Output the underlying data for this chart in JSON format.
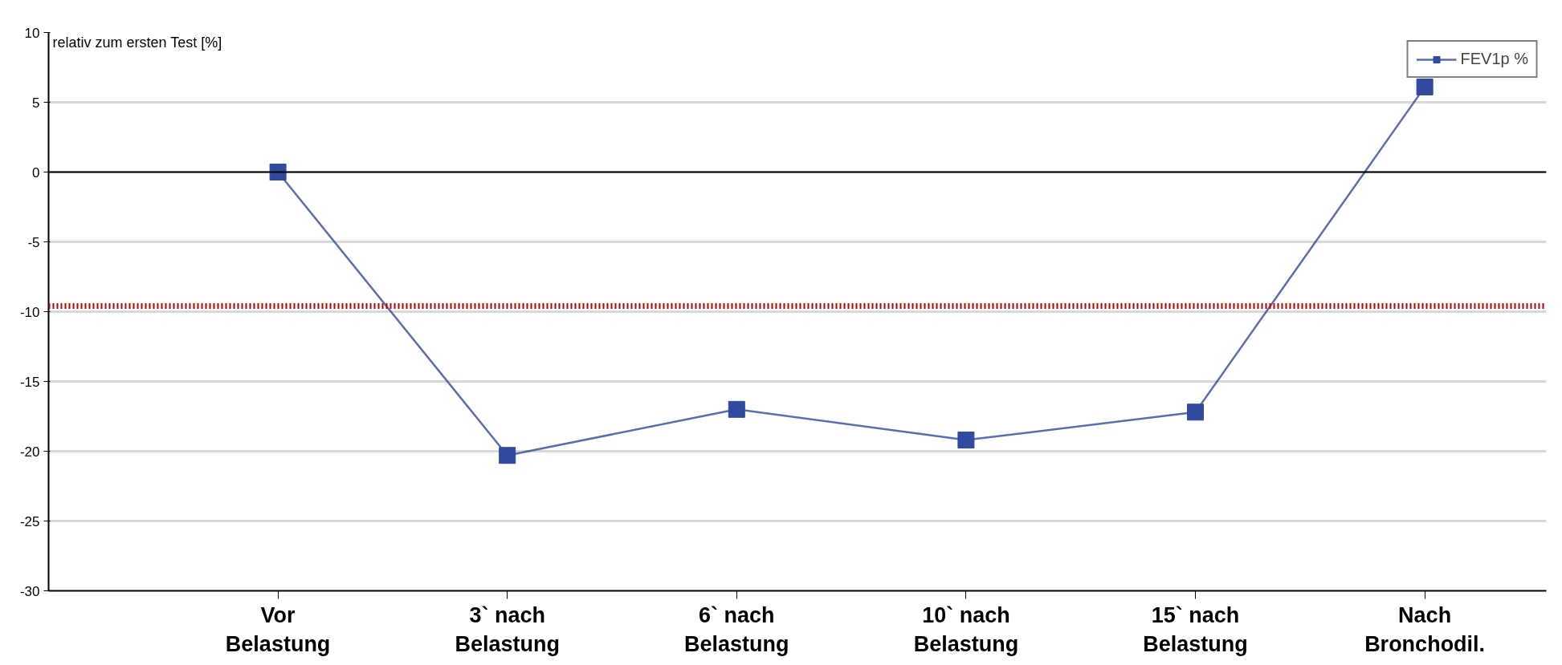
{
  "chart_data": {
    "type": "line",
    "ylabel": "relativ zum ersten Test [%]",
    "categories": [
      "Vor Belastung",
      "3` nach Belastung",
      "6` nach Belastung",
      "10` nach Belastung",
      "15` nach Belastung",
      "Nach Bronchodil."
    ],
    "series": [
      {
        "name": "FEV1p %",
        "color": "#2f4a9e",
        "values": [
          0,
          -20.3,
          -17.0,
          -19.2,
          -17.2,
          6.1
        ]
      }
    ],
    "ylim": [
      -30,
      10
    ],
    "yticks": [
      -30,
      -25,
      -20,
      -15,
      -10,
      -5,
      0,
      5,
      10
    ],
    "ref_lines": [
      {
        "axis": "y",
        "value": 0,
        "color": "#000000",
        "line_style": "solid"
      },
      {
        "axis": "y",
        "value": -9.6,
        "color": "#c00000",
        "line_style": "dotted"
      }
    ],
    "grid": "y",
    "legend": "top right",
    "marker": "square",
    "line_style": "solid"
  }
}
